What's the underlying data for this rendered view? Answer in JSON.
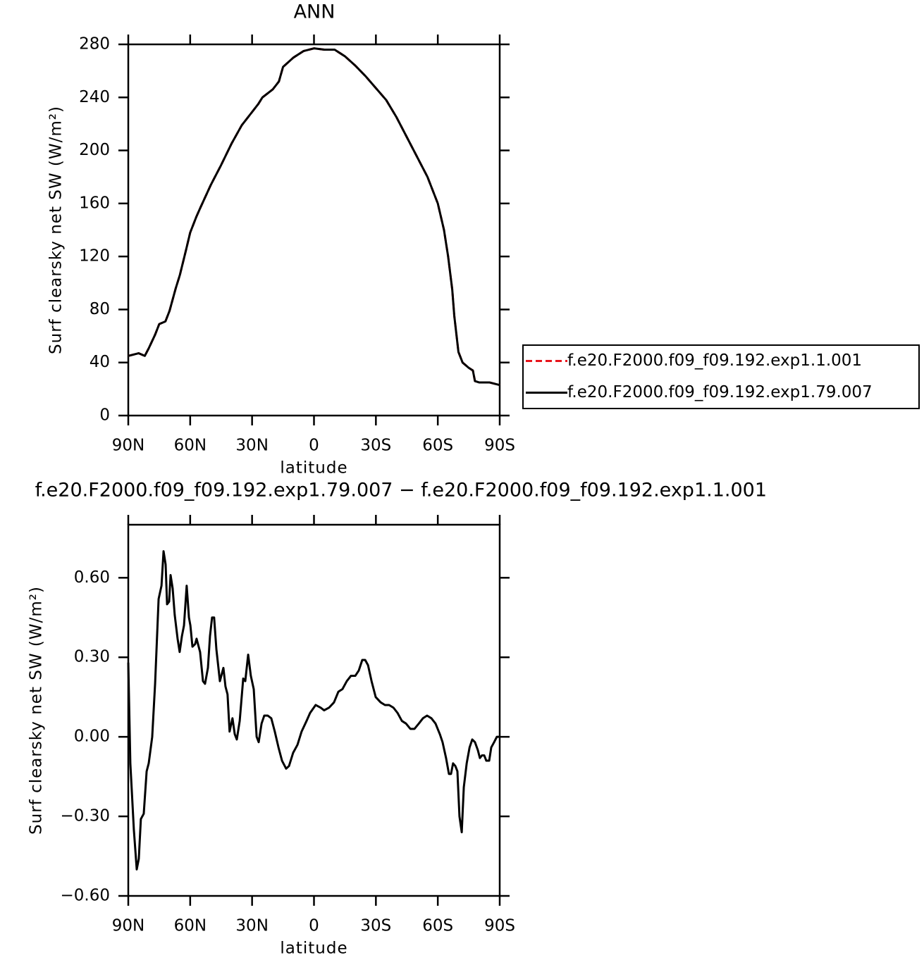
{
  "chart_data": [
    {
      "type": "line",
      "title": "ANN",
      "xlabel": "latitude",
      "ylabel": "Surf clearsky net SW (W/m²)",
      "xlim": [
        90,
        -90
      ],
      "xticks": [
        {
          "value": 90,
          "label": "90N"
        },
        {
          "value": 60,
          "label": "60N"
        },
        {
          "value": 30,
          "label": "30N"
        },
        0,
        {
          "value": -30,
          "label": "30S"
        },
        {
          "value": -60,
          "label": "60S"
        },
        {
          "value": -90,
          "label": "90S"
        }
      ],
      "ylim": [
        0,
        280
      ],
      "yticks": [
        0,
        40,
        80,
        120,
        160,
        200,
        240,
        280
      ],
      "legend": "outside-right",
      "x": [
        90,
        85,
        82,
        80,
        77,
        75,
        72,
        70,
        67,
        65,
        62,
        60,
        57,
        55,
        50,
        45,
        40,
        35,
        30,
        27,
        25,
        20,
        17,
        15,
        10,
        5,
        0,
        -5,
        -10,
        -15,
        -20,
        -25,
        -30,
        -35,
        -40,
        -45,
        -50,
        -55,
        -60,
        -63,
        -65,
        -67,
        -68,
        -70,
        -72,
        -75,
        -77,
        -78,
        -80,
        -85,
        -90
      ],
      "series": [
        {
          "name": "f.e20.F2000.f09_f09.192.exp1.1.001",
          "color": "#e8141b",
          "line_style": "dashed",
          "values": [
            45,
            47,
            45,
            51,
            61,
            69,
            71,
            79,
            96,
            106,
            125,
            138,
            150,
            157,
            174,
            189,
            205,
            219,
            229,
            235,
            240,
            246,
            252,
            263,
            270,
            275,
            277,
            276,
            276,
            271,
            264,
            256,
            247,
            238,
            225,
            210,
            195,
            180,
            160,
            140,
            120,
            95,
            75,
            48,
            40,
            36,
            34,
            26,
            25,
            25,
            23
          ]
        },
        {
          "name": "f.e20.F2000.f09_f09.192.exp1.79.007",
          "color": "#000000",
          "line_style": "solid",
          "values": [
            45,
            47,
            45,
            51,
            61,
            69,
            71,
            79,
            96,
            106,
            125,
            138,
            150,
            157,
            174,
            189,
            205,
            219,
            229,
            235,
            240,
            246,
            252,
            263,
            270,
            275,
            277,
            276,
            276,
            271,
            264,
            256,
            247,
            238,
            225,
            210,
            195,
            180,
            160,
            140,
            120,
            95,
            75,
            48,
            40,
            36,
            34,
            26,
            25,
            25,
            23
          ]
        }
      ]
    },
    {
      "type": "line",
      "title": "f.e20.F2000.f09_f09.192.exp1.79.007 − f.e20.F2000.f09_f09.192.exp1.1.001",
      "xlabel": "latitude",
      "ylabel": "Surf clearsky net SW (W/m²)",
      "xlim": [
        90,
        -90
      ],
      "xticks": [
        {
          "value": 90,
          "label": "90N"
        },
        {
          "value": 60,
          "label": "60N"
        },
        {
          "value": 30,
          "label": "30N"
        },
        0,
        {
          "value": -30,
          "label": "30S"
        },
        {
          "value": -60,
          "label": "60S"
        },
        {
          "value": -90,
          "label": "90S"
        }
      ],
      "ylim": [
        -0.6,
        0.8
      ],
      "yticks": [
        {
          "value": -0.6,
          "label": "−0.60"
        },
        {
          "value": -0.3,
          "label": "−0.30"
        },
        {
          "value": 0,
          "label": "0.00"
        },
        {
          "value": 0.3,
          "label": "0.30"
        },
        {
          "value": 0.6,
          "label": "0.60"
        }
      ],
      "x": [
        90,
        89.0,
        87.3,
        85.9,
        84.9,
        83.9,
        82.5,
        81.1,
        80.1,
        78.4,
        77.0,
        75.3,
        73.9,
        72.9,
        71.9,
        71.2,
        70.2,
        69.5,
        68.5,
        67.5,
        66.1,
        65.1,
        64.0,
        63.0,
        61.7,
        60.6,
        59.9,
        58.9,
        57.6,
        56.9,
        55.2,
        53.8,
        52.8,
        51.4,
        50.4,
        49.4,
        48.4,
        47.3,
        45.6,
        43.9,
        42.9,
        41.9,
        40.9,
        39.5,
        38.4,
        37.4,
        36.0,
        34.3,
        33.3,
        31.9,
        30.6,
        29.2,
        27.8,
        26.8,
        25.4,
        24.1,
        22.4,
        20.7,
        19.0,
        17.2,
        15.5,
        13.5,
        12.1,
        10.1,
        8.0,
        6.0,
        3.6,
        1.9,
        -0.8,
        -3.2,
        -4.9,
        -7.3,
        -9.7,
        -11.8,
        -13.8,
        -15.9,
        -17.9,
        -20.0,
        -21.7,
        -23.4,
        -24.8,
        -26.2,
        -27.9,
        -29.9,
        -32.3,
        -34.4,
        -36.4,
        -38.5,
        -40.5,
        -42.6,
        -44.6,
        -46.7,
        -48.7,
        -50.8,
        -52.8,
        -54.8,
        -56.9,
        -58.9,
        -61.0,
        -62.3,
        -64.0,
        -65.4,
        -66.4,
        -67.4,
        -68.5,
        -69.5,
        -70.5,
        -71.6,
        -72.6,
        -74.0,
        -75.4,
        -76.7,
        -78.0,
        -79.4,
        -80.4,
        -81.4,
        -82.5,
        -83.5,
        -84.9,
        -85.9,
        -87.3,
        -88.6,
        -90
      ],
      "series": [
        {
          "name": "f.e20.F2000.f09_f09.192.exp1.79.007 − f.e20.F2000.f09_f09.192.exp1.1.001",
          "color": "#000000",
          "line_style": "solid",
          "values": [
            0.28,
            -0.1,
            -0.35,
            -0.5,
            -0.46,
            -0.31,
            -0.29,
            -0.13,
            -0.1,
            0.0,
            0.2,
            0.52,
            0.57,
            0.7,
            0.65,
            0.5,
            0.51,
            0.61,
            0.56,
            0.46,
            0.37,
            0.32,
            0.38,
            0.42,
            0.57,
            0.45,
            0.42,
            0.34,
            0.35,
            0.37,
            0.32,
            0.21,
            0.2,
            0.26,
            0.38,
            0.45,
            0.45,
            0.33,
            0.21,
            0.26,
            0.19,
            0.16,
            0.02,
            0.07,
            0.01,
            -0.01,
            0.06,
            0.22,
            0.21,
            0.31,
            0.23,
            0.18,
            0.0,
            -0.02,
            0.05,
            0.08,
            0.08,
            0.07,
            0.02,
            -0.04,
            -0.09,
            -0.12,
            -0.11,
            -0.06,
            -0.03,
            0.02,
            0.06,
            0.09,
            0.12,
            0.11,
            0.1,
            0.11,
            0.13,
            0.17,
            0.18,
            0.21,
            0.23,
            0.23,
            0.25,
            0.29,
            0.29,
            0.27,
            0.21,
            0.15,
            0.13,
            0.12,
            0.12,
            0.11,
            0.09,
            0.06,
            0.05,
            0.03,
            0.03,
            0.05,
            0.07,
            0.08,
            0.07,
            0.05,
            0.01,
            -0.02,
            -0.08,
            -0.14,
            -0.14,
            -0.1,
            -0.11,
            -0.13,
            -0.3,
            -0.36,
            -0.19,
            -0.1,
            -0.04,
            -0.01,
            -0.02,
            -0.05,
            -0.08,
            -0.07,
            -0.07,
            -0.09,
            -0.09,
            -0.04,
            -0.02,
            0,
            0
          ]
        }
      ]
    }
  ]
}
